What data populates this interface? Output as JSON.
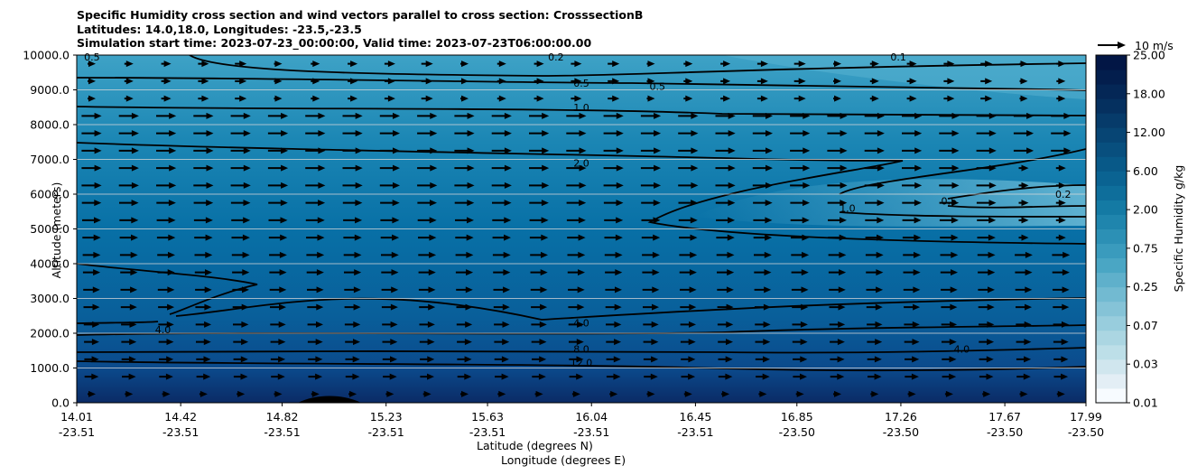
{
  "chart_data": {
    "type": "heatmap",
    "title_lines": [
      "Specific Humidity cross section and wind vectors parallel to cross section: CrosssectionB",
      "Latitudes: 14.0,18.0, Longitudes: -23.5,-23.5",
      "Simulation start time: 2023-07-23_00:00:00, Valid time: 2023-07-23T06:00:00.00"
    ],
    "xlabel_lat": "Latitude (degrees N)",
    "xlabel_lon": "Longitude (degrees E)",
    "ylabel": "Altitude (meters)",
    "ylim": [
      0,
      10000
    ],
    "yticks": [
      "0.0",
      "1000.0",
      "2000.0",
      "3000.0",
      "4000.0",
      "5000.0",
      "6000.0",
      "7000.0",
      "8000.0",
      "9000.0",
      "10000.0"
    ],
    "xticks_lat": [
      "14.01",
      "14.42",
      "14.82",
      "15.23",
      "15.63",
      "16.04",
      "16.45",
      "16.85",
      "17.26",
      "17.67",
      "17.99"
    ],
    "xticks_lon": [
      "-23.51",
      "-23.51",
      "-23.51",
      "-23.51",
      "-23.51",
      "-23.51",
      "-23.51",
      "-23.50",
      "-23.50",
      "-23.50",
      "-23.50"
    ],
    "colorbar": {
      "label": "Specific Humidity g/kg",
      "ticks": [
        "0.01",
        "0.03",
        "0.07",
        "0.25",
        "0.75",
        "2.00",
        "6.00",
        "12.00",
        "18.00",
        "25.00"
      ]
    },
    "quiver_key": "10 m/s",
    "contour_labels": [
      {
        "text": "0.5",
        "x": 16.0,
        "y": 9200
      },
      {
        "text": "0.5",
        "x": 16.3,
        "y": 9100
      },
      {
        "text": "0.2",
        "x": 15.9,
        "y": 9950
      },
      {
        "text": "0.5",
        "x": 14.07,
        "y": 9950
      },
      {
        "text": "0.1",
        "x": 17.25,
        "y": 9950
      },
      {
        "text": "1.0",
        "x": 16.0,
        "y": 8500
      },
      {
        "text": "2.0",
        "x": 16.0,
        "y": 6900
      },
      {
        "text": "1.0",
        "x": 17.05,
        "y": 5600
      },
      {
        "text": "0.5",
        "x": 17.45,
        "y": 5800
      },
      {
        "text": "0.2",
        "x": 17.9,
        "y": 6000
      },
      {
        "text": "4.0",
        "x": 16.0,
        "y": 2300
      },
      {
        "text": "8.0",
        "x": 16.0,
        "y": 1550
      },
      {
        "text": "12.0",
        "x": 16.0,
        "y": 1150
      },
      {
        "text": "4.0",
        "x": 17.5,
        "y": 1550
      },
      {
        "text": "4.0",
        "x": 14.35,
        "y": 2100
      }
    ]
  }
}
